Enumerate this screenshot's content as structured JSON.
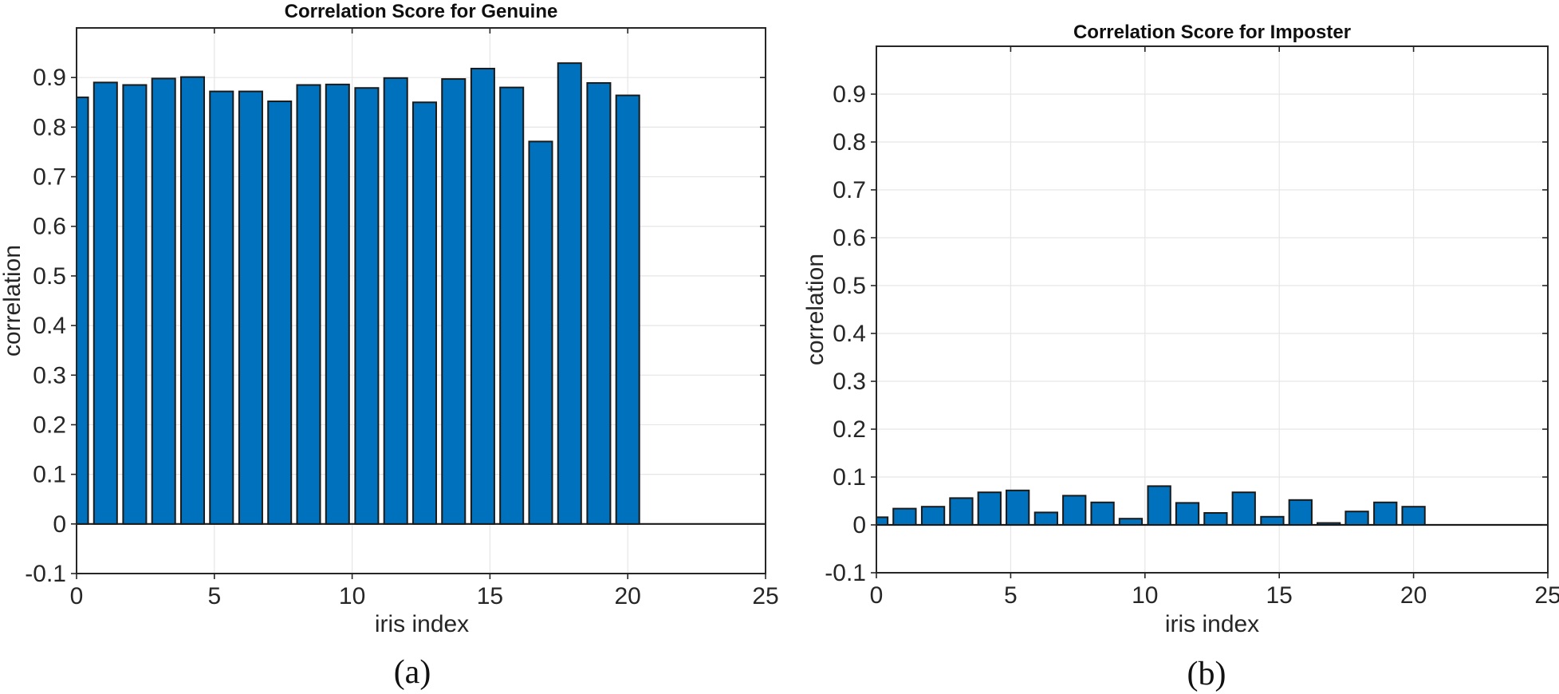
{
  "page": {
    "background": "#ffffff",
    "captions": {
      "a": "(a)",
      "b": "(b)"
    }
  },
  "style_colors": {
    "bar_fill": "#0072BD",
    "bar_edge": "#1a1a1a",
    "grid": "#e6e6e6",
    "axis_border": "#262626",
    "tick_text": "#262626",
    "baseline": "#1a1a1a",
    "title_text": "#0f0f0f"
  },
  "chart_data": [
    {
      "type": "bar",
      "id": "genuine",
      "title": "Correlation Score for Genuine",
      "xlabel": "iris index",
      "ylabel": "correlation",
      "xlim": [
        0,
        25
      ],
      "ylim": [
        -0.1,
        1.0
      ],
      "grid": true,
      "x_tick_labels": [
        "0",
        "5",
        "10",
        "15",
        "20",
        "25"
      ],
      "x_tick_values": [
        0,
        5,
        10,
        15,
        20,
        25
      ],
      "y_tick_labels": [
        "-0.1",
        "0",
        "0.1",
        "0.2",
        "0.3",
        "0.4",
        "0.5",
        "0.6",
        "0.7",
        "0.8",
        "0.9"
      ],
      "y_tick_values": [
        -0.1,
        0,
        0.1,
        0.2,
        0.3,
        0.4,
        0.5,
        0.6,
        0.7,
        0.8,
        0.9
      ],
      "bar_width_units": 0.84,
      "x": [
        0,
        1.05,
        2.11,
        3.16,
        4.21,
        5.26,
        6.32,
        7.37,
        8.42,
        9.47,
        10.53,
        11.58,
        12.63,
        13.68,
        14.74,
        15.79,
        16.84,
        17.89,
        18.95,
        20
      ],
      "values": [
        0.86,
        0.89,
        0.885,
        0.898,
        0.901,
        0.872,
        0.872,
        0.852,
        0.885,
        0.886,
        0.879,
        0.899,
        0.85,
        0.897,
        0.918,
        0.88,
        0.771,
        0.929,
        0.889,
        0.864
      ]
    },
    {
      "type": "bar",
      "id": "imposter",
      "title": "Correlation Score for Imposter",
      "xlabel": "iris index",
      "ylabel": "correlation",
      "xlim": [
        0,
        25
      ],
      "ylim": [
        -0.1,
        1.0
      ],
      "grid": true,
      "x_tick_labels": [
        "0",
        "5",
        "10",
        "15",
        "20",
        "25"
      ],
      "x_tick_values": [
        0,
        5,
        10,
        15,
        20,
        25
      ],
      "y_tick_labels": [
        "-0.1",
        "0",
        "0.1",
        "0.2",
        "0.3",
        "0.4",
        "0.5",
        "0.6",
        "0.7",
        "0.8",
        "0.9"
      ],
      "y_tick_values": [
        -0.1,
        0,
        0.1,
        0.2,
        0.3,
        0.4,
        0.5,
        0.6,
        0.7,
        0.8,
        0.9
      ],
      "bar_width_units": 0.84,
      "x": [
        0,
        1.05,
        2.11,
        3.16,
        4.21,
        5.26,
        6.32,
        7.37,
        8.42,
        9.47,
        10.53,
        11.58,
        12.63,
        13.68,
        14.74,
        15.79,
        16.84,
        17.89,
        18.95,
        20
      ],
      "values": [
        0.016,
        0.034,
        0.038,
        0.056,
        0.068,
        0.072,
        0.026,
        0.061,
        0.047,
        0.013,
        0.081,
        0.046,
        0.025,
        0.068,
        0.017,
        0.052,
        0.004,
        0.028,
        0.047,
        0.038
      ]
    }
  ]
}
